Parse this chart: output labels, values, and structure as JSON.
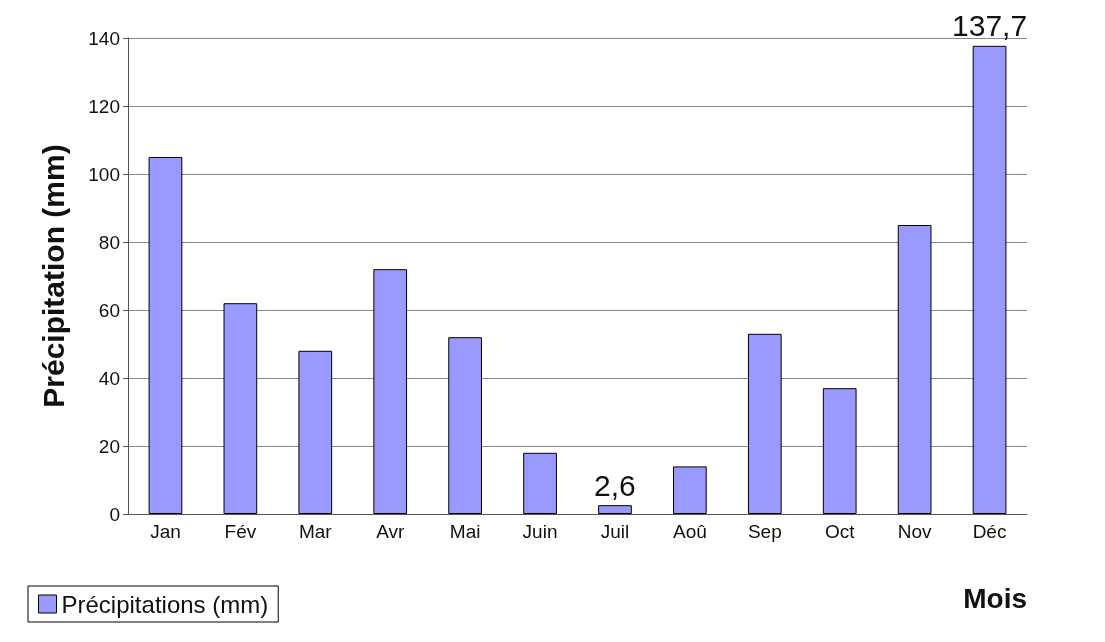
{
  "chart_data": {
    "type": "bar",
    "xlabel": "Mois",
    "ylabel": "Précipitation (mm)",
    "categories": [
      "Jan",
      "Fév",
      "Mar",
      "Avr",
      "Mai",
      "Juin",
      "Juil",
      "Aoû",
      "Sep",
      "Oct",
      "Nov",
      "Déc"
    ],
    "series": [
      {
        "name": "Précipitations (mm)",
        "color": "#9999ff",
        "values": [
          105,
          62,
          48,
          72,
          52,
          18,
          2.6,
          14,
          53,
          37,
          85,
          137.7
        ],
        "value_labels": [
          null,
          null,
          null,
          null,
          null,
          null,
          "2,6",
          null,
          null,
          null,
          null,
          "137,7"
        ]
      }
    ],
    "ylim": [
      0,
      140
    ],
    "yticks": [
      0,
      20,
      40,
      60,
      80,
      100,
      120,
      140
    ],
    "grid": "y",
    "legend": "bottom left"
  }
}
